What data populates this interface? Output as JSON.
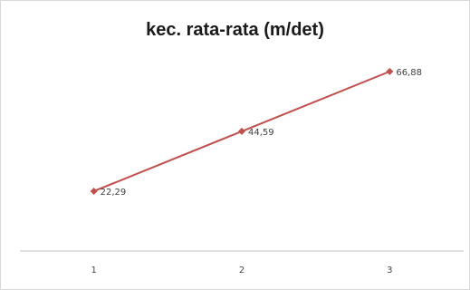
{
  "chart_data": {
    "type": "line",
    "title": "kec. rata-rata (m/det)",
    "categories": [
      "1",
      "2",
      "3"
    ],
    "series": [
      {
        "values": [
          22.29,
          44.59,
          66.88
        ],
        "labels": [
          "22,29",
          "44,59",
          "66,88"
        ],
        "color": "#c0504d"
      }
    ],
    "ylim": [
      0,
      80
    ],
    "grid": false,
    "legend": "none",
    "xlabel": "",
    "ylabel": ""
  }
}
